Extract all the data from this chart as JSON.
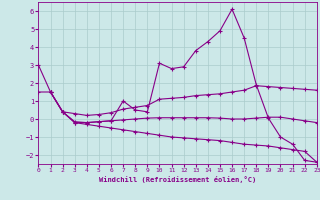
{
  "xlabel": "Windchill (Refroidissement éolien,°C)",
  "background_color": "#cce8e8",
  "grid_color": "#aacccc",
  "line_color": "#880088",
  "xlim": [
    0,
    23
  ],
  "ylim": [
    -2.5,
    6.5
  ],
  "xticks": [
    0,
    1,
    2,
    3,
    4,
    5,
    6,
    7,
    8,
    9,
    10,
    11,
    12,
    13,
    14,
    15,
    16,
    17,
    18,
    19,
    20,
    21,
    22,
    23
  ],
  "yticks": [
    -2,
    -1,
    0,
    1,
    2,
    3,
    4,
    5,
    6
  ],
  "line1_x": [
    0,
    1,
    2,
    3,
    4,
    5,
    6,
    7,
    8,
    9,
    10,
    11,
    12,
    13,
    14,
    15,
    16,
    17,
    18,
    19,
    20,
    21,
    22,
    23
  ],
  "line1_y": [
    3.0,
    1.5,
    0.4,
    -0.2,
    -0.2,
    -0.15,
    -0.1,
    1.0,
    0.5,
    0.4,
    3.1,
    2.8,
    2.9,
    3.8,
    4.3,
    4.9,
    6.1,
    4.5,
    1.9,
    0.05,
    -1.0,
    -1.4,
    -2.3,
    -2.4
  ],
  "line2_x": [
    0,
    1,
    2,
    3,
    4,
    5,
    6,
    7,
    8,
    9,
    10,
    11,
    12,
    13,
    14,
    15,
    16,
    17,
    18,
    19,
    20,
    21,
    22,
    23
  ],
  "line2_y": [
    1.5,
    1.5,
    0.4,
    0.3,
    0.2,
    0.25,
    0.35,
    0.55,
    0.65,
    0.75,
    1.1,
    1.15,
    1.2,
    1.3,
    1.35,
    1.4,
    1.5,
    1.6,
    1.85,
    1.8,
    1.75,
    1.7,
    1.65,
    1.6
  ],
  "line3_x": [
    1,
    2,
    3,
    4,
    5,
    6,
    7,
    8,
    9,
    10,
    11,
    12,
    13,
    14,
    15,
    16,
    17,
    18,
    19,
    20,
    21,
    22,
    23
  ],
  "line3_y": [
    1.5,
    0.4,
    -0.15,
    -0.2,
    -0.15,
    -0.1,
    -0.05,
    0.0,
    0.05,
    0.07,
    0.07,
    0.07,
    0.07,
    0.07,
    0.05,
    0.0,
    0.0,
    0.05,
    0.1,
    0.1,
    0.0,
    -0.1,
    -0.2
  ],
  "line4_x": [
    1,
    2,
    3,
    4,
    5,
    6,
    7,
    8,
    9,
    10,
    11,
    12,
    13,
    14,
    15,
    16,
    17,
    18,
    19,
    20,
    21,
    22,
    23
  ],
  "line4_y": [
    1.5,
    0.4,
    -0.2,
    -0.3,
    -0.4,
    -0.5,
    -0.6,
    -0.7,
    -0.8,
    -0.9,
    -1.0,
    -1.05,
    -1.1,
    -1.15,
    -1.2,
    -1.3,
    -1.4,
    -1.45,
    -1.5,
    -1.6,
    -1.7,
    -1.8,
    -2.4
  ]
}
